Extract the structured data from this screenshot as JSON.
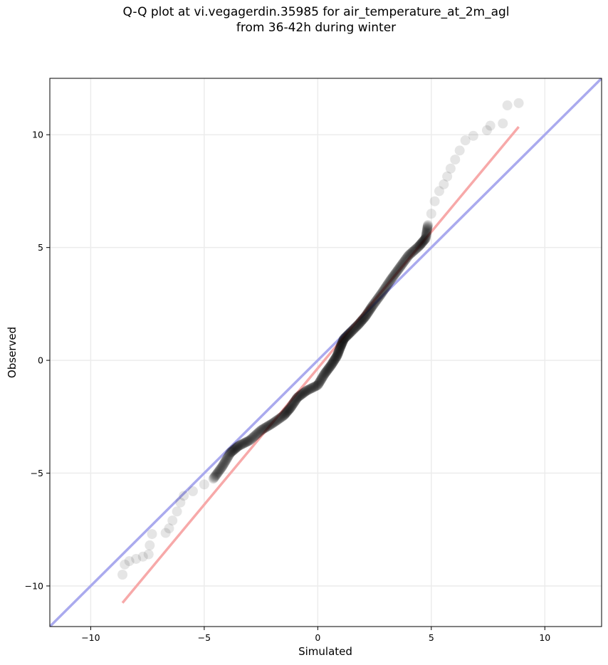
{
  "chart_data": {
    "type": "scatter",
    "title_line1": "Q-Q plot at vi.vegagerdin.35985 for air_temperature_at_2m_agl",
    "title_line2": "from 36-42h during winter",
    "xlabel": "Simulated",
    "ylabel": "Observed",
    "xlim": [
      -11.8,
      12.5
    ],
    "ylim": [
      -11.8,
      12.5
    ],
    "xticks": [
      -10,
      -5,
      0,
      5,
      10
    ],
    "yticks": [
      -10,
      -5,
      0,
      5,
      10
    ],
    "xtick_labels": [
      "−10",
      "−5",
      "0",
      "5",
      "10"
    ],
    "ytick_labels": [
      "−10",
      "−5",
      "0",
      "5",
      "10"
    ],
    "grid": true,
    "identity_line": {
      "from": [
        -11.8,
        -11.8
      ],
      "to": [
        12.5,
        12.5
      ],
      "color": "#aaaaee"
    },
    "fit_line": {
      "from": [
        -8.6,
        -10.75
      ],
      "to": [
        8.85,
        10.35
      ],
      "color": "#f7a9a9"
    },
    "point_color": "#000000",
    "quantile_curve": [
      [
        -8.6,
        -9.5
      ],
      [
        -8.5,
        -9.05
      ],
      [
        -8.3,
        -8.9
      ],
      [
        -8.0,
        -8.8
      ],
      [
        -7.7,
        -8.7
      ],
      [
        -7.45,
        -8.6
      ],
      [
        -7.4,
        -8.2
      ],
      [
        -7.3,
        -7.7
      ],
      [
        -6.7,
        -7.65
      ],
      [
        -6.55,
        -7.45
      ],
      [
        -6.4,
        -7.1
      ],
      [
        -6.2,
        -6.7
      ],
      [
        -6.05,
        -6.3
      ],
      [
        -5.9,
        -6.0
      ],
      [
        -5.5,
        -5.8
      ],
      [
        -5.0,
        -5.5
      ],
      [
        -4.6,
        -5.25
      ],
      [
        -4.2,
        -4.7
      ],
      [
        -3.85,
        -4.1
      ],
      [
        -3.5,
        -3.8
      ],
      [
        -3.0,
        -3.55
      ],
      [
        -2.5,
        -3.1
      ],
      [
        -2.0,
        -2.8
      ],
      [
        -1.5,
        -2.45
      ],
      [
        -1.2,
        -2.1
      ],
      [
        -0.9,
        -1.65
      ],
      [
        -0.5,
        -1.35
      ],
      [
        0.0,
        -1.1
      ],
      [
        0.3,
        -0.6
      ],
      [
        0.6,
        -0.2
      ],
      [
        0.85,
        0.2
      ],
      [
        1.0,
        0.6
      ],
      [
        1.15,
        0.95
      ],
      [
        1.45,
        1.25
      ],
      [
        1.8,
        1.6
      ],
      [
        2.1,
        1.95
      ],
      [
        2.4,
        2.4
      ],
      [
        2.8,
        2.95
      ],
      [
        3.2,
        3.55
      ],
      [
        3.6,
        4.1
      ],
      [
        4.0,
        4.65
      ],
      [
        4.45,
        5.05
      ],
      [
        4.75,
        5.4
      ],
      [
        4.85,
        6.0
      ],
      [
        5.0,
        6.5
      ],
      [
        5.15,
        7.05
      ],
      [
        5.35,
        7.5
      ],
      [
        5.55,
        7.8
      ],
      [
        5.7,
        8.15
      ],
      [
        5.85,
        8.5
      ],
      [
        6.05,
        8.9
      ],
      [
        6.25,
        9.3
      ],
      [
        6.5,
        9.75
      ],
      [
        6.85,
        9.95
      ],
      [
        7.45,
        10.2
      ],
      [
        7.6,
        10.4
      ],
      [
        8.15,
        10.5
      ],
      [
        8.35,
        11.3
      ],
      [
        8.85,
        11.4
      ]
    ]
  }
}
